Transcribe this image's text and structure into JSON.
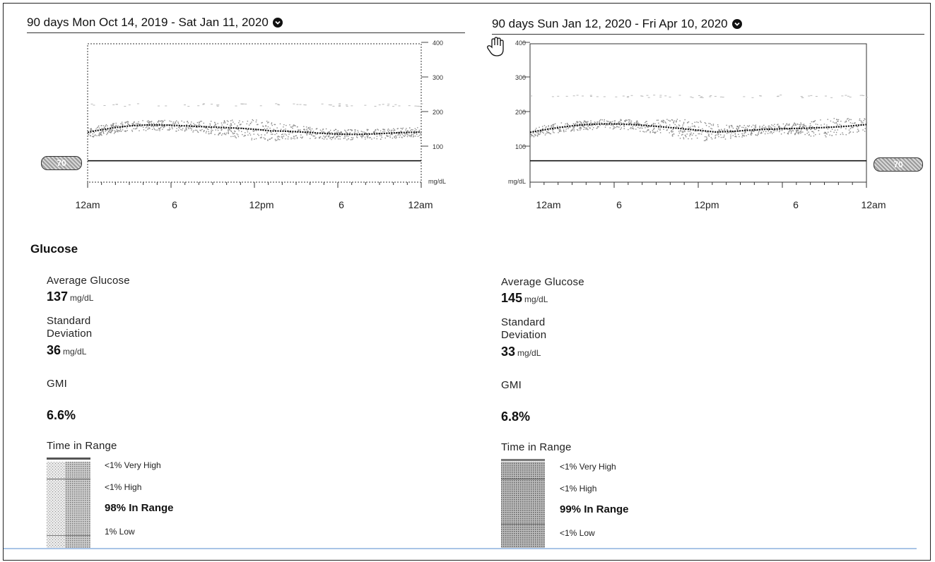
{
  "left": {
    "period_title": "90 days Mon Oct 14, 2019 - Sat Jan 11, 2020",
    "y_ticks": [
      "400",
      "300",
      "200",
      "100",
      "mg/dL"
    ],
    "x_labels": [
      "12am",
      "6",
      "12pm",
      "6",
      "12am"
    ],
    "target_low_value": "70",
    "average_glucose_label": "Average Glucose",
    "average_glucose_value": "137",
    "average_glucose_unit": "mg/dL",
    "std_dev_label_1": "Standard",
    "std_dev_label_2": "Deviation",
    "std_dev_value": "36",
    "std_dev_unit": "mg/dL",
    "gmi_label": "GMI",
    "gmi_value": "6.6%",
    "tir_label": "Time in Range",
    "tir_very_high": "<1% Very High",
    "tir_high": "<1% High",
    "tir_in_range": "98% In Range",
    "tir_low": "1% Low"
  },
  "right": {
    "period_title": "90 days Sun Jan 12, 2020 - Fri Apr 10, 2020",
    "y_ticks": [
      "400",
      "300",
      "200",
      "100",
      "mg/dL"
    ],
    "x_labels": [
      "12am",
      "6",
      "12pm",
      "6",
      "12am"
    ],
    "target_low_value": "70",
    "average_glucose_label": "Average Glucose",
    "average_glucose_value": "145",
    "average_glucose_unit": "mg/dL",
    "std_dev_label_1": "Standard",
    "std_dev_label_2": "Deviation",
    "std_dev_value": "33",
    "std_dev_unit": "mg/dL",
    "gmi_label": "GMI",
    "gmi_value": "6.8%",
    "tir_label": "Time in Range",
    "tir_very_high": "<1% Very High",
    "tir_high": "<1% High",
    "tir_in_range": "99% In Range",
    "tir_low": "<1% Low"
  },
  "glucose_section_title": "Glucose",
  "icons": {
    "period_dropdown": "chevron-down-circle-icon",
    "cursor": "hand-cursor-icon"
  }
}
